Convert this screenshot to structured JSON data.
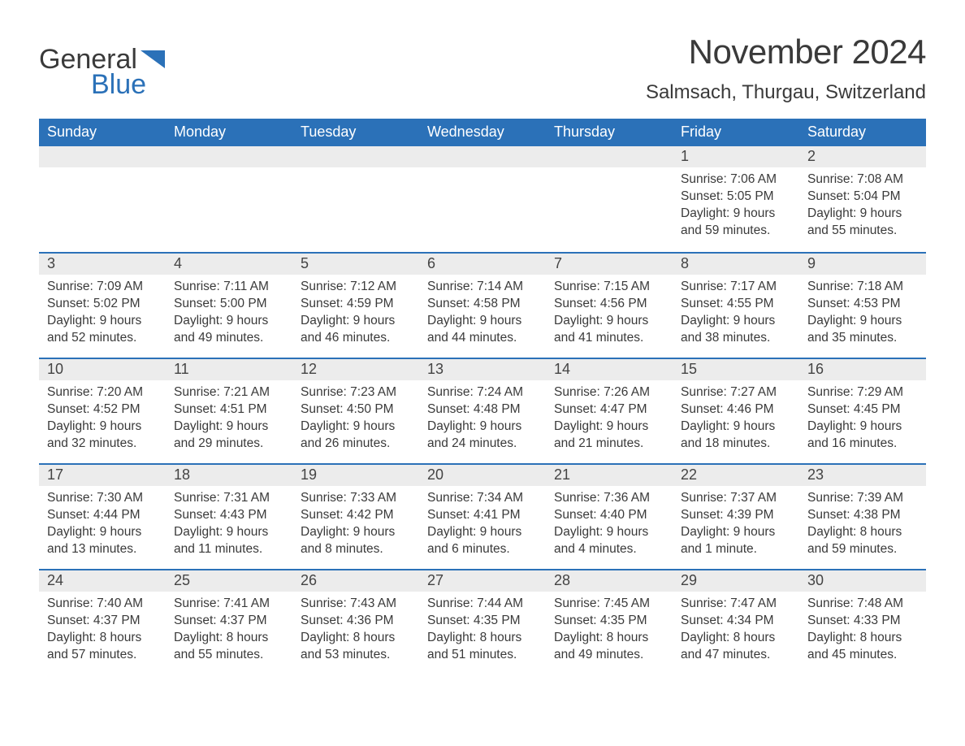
{
  "brand": {
    "text_general": "General",
    "text_blue": "Blue",
    "flag_color": "#2b71b8",
    "text_color_dark": "#3a3a3a"
  },
  "title": "November 2024",
  "subtitle": "Salmsach, Thurgau, Switzerland",
  "colors": {
    "header_bg": "#2b71b8",
    "header_text": "#ffffff",
    "daynum_bg": "#ececec",
    "week_divider": "#2b71b8",
    "body_text": "#3a3a3a",
    "page_bg": "#ffffff"
  },
  "typography": {
    "title_fontsize": 42,
    "subtitle_fontsize": 24,
    "weekday_fontsize": 18,
    "daynum_fontsize": 18,
    "body_fontsize": 15.5,
    "font_family": "Arial"
  },
  "weekdays": [
    "Sunday",
    "Monday",
    "Tuesday",
    "Wednesday",
    "Thursday",
    "Friday",
    "Saturday"
  ],
  "weeks": [
    [
      {
        "blank": true
      },
      {
        "blank": true
      },
      {
        "blank": true
      },
      {
        "blank": true
      },
      {
        "blank": true
      },
      {
        "day": "1",
        "sunrise": "Sunrise: 7:06 AM",
        "sunset": "Sunset: 5:05 PM",
        "dl1": "Daylight: 9 hours",
        "dl2": "and 59 minutes."
      },
      {
        "day": "2",
        "sunrise": "Sunrise: 7:08 AM",
        "sunset": "Sunset: 5:04 PM",
        "dl1": "Daylight: 9 hours",
        "dl2": "and 55 minutes."
      }
    ],
    [
      {
        "day": "3",
        "sunrise": "Sunrise: 7:09 AM",
        "sunset": "Sunset: 5:02 PM",
        "dl1": "Daylight: 9 hours",
        "dl2": "and 52 minutes."
      },
      {
        "day": "4",
        "sunrise": "Sunrise: 7:11 AM",
        "sunset": "Sunset: 5:00 PM",
        "dl1": "Daylight: 9 hours",
        "dl2": "and 49 minutes."
      },
      {
        "day": "5",
        "sunrise": "Sunrise: 7:12 AM",
        "sunset": "Sunset: 4:59 PM",
        "dl1": "Daylight: 9 hours",
        "dl2": "and 46 minutes."
      },
      {
        "day": "6",
        "sunrise": "Sunrise: 7:14 AM",
        "sunset": "Sunset: 4:58 PM",
        "dl1": "Daylight: 9 hours",
        "dl2": "and 44 minutes."
      },
      {
        "day": "7",
        "sunrise": "Sunrise: 7:15 AM",
        "sunset": "Sunset: 4:56 PM",
        "dl1": "Daylight: 9 hours",
        "dl2": "and 41 minutes."
      },
      {
        "day": "8",
        "sunrise": "Sunrise: 7:17 AM",
        "sunset": "Sunset: 4:55 PM",
        "dl1": "Daylight: 9 hours",
        "dl2": "and 38 minutes."
      },
      {
        "day": "9",
        "sunrise": "Sunrise: 7:18 AM",
        "sunset": "Sunset: 4:53 PM",
        "dl1": "Daylight: 9 hours",
        "dl2": "and 35 minutes."
      }
    ],
    [
      {
        "day": "10",
        "sunrise": "Sunrise: 7:20 AM",
        "sunset": "Sunset: 4:52 PM",
        "dl1": "Daylight: 9 hours",
        "dl2": "and 32 minutes."
      },
      {
        "day": "11",
        "sunrise": "Sunrise: 7:21 AM",
        "sunset": "Sunset: 4:51 PM",
        "dl1": "Daylight: 9 hours",
        "dl2": "and 29 minutes."
      },
      {
        "day": "12",
        "sunrise": "Sunrise: 7:23 AM",
        "sunset": "Sunset: 4:50 PM",
        "dl1": "Daylight: 9 hours",
        "dl2": "and 26 minutes."
      },
      {
        "day": "13",
        "sunrise": "Sunrise: 7:24 AM",
        "sunset": "Sunset: 4:48 PM",
        "dl1": "Daylight: 9 hours",
        "dl2": "and 24 minutes."
      },
      {
        "day": "14",
        "sunrise": "Sunrise: 7:26 AM",
        "sunset": "Sunset: 4:47 PM",
        "dl1": "Daylight: 9 hours",
        "dl2": "and 21 minutes."
      },
      {
        "day": "15",
        "sunrise": "Sunrise: 7:27 AM",
        "sunset": "Sunset: 4:46 PM",
        "dl1": "Daylight: 9 hours",
        "dl2": "and 18 minutes."
      },
      {
        "day": "16",
        "sunrise": "Sunrise: 7:29 AM",
        "sunset": "Sunset: 4:45 PM",
        "dl1": "Daylight: 9 hours",
        "dl2": "and 16 minutes."
      }
    ],
    [
      {
        "day": "17",
        "sunrise": "Sunrise: 7:30 AM",
        "sunset": "Sunset: 4:44 PM",
        "dl1": "Daylight: 9 hours",
        "dl2": "and 13 minutes."
      },
      {
        "day": "18",
        "sunrise": "Sunrise: 7:31 AM",
        "sunset": "Sunset: 4:43 PM",
        "dl1": "Daylight: 9 hours",
        "dl2": "and 11 minutes."
      },
      {
        "day": "19",
        "sunrise": "Sunrise: 7:33 AM",
        "sunset": "Sunset: 4:42 PM",
        "dl1": "Daylight: 9 hours",
        "dl2": "and 8 minutes."
      },
      {
        "day": "20",
        "sunrise": "Sunrise: 7:34 AM",
        "sunset": "Sunset: 4:41 PM",
        "dl1": "Daylight: 9 hours",
        "dl2": "and 6 minutes."
      },
      {
        "day": "21",
        "sunrise": "Sunrise: 7:36 AM",
        "sunset": "Sunset: 4:40 PM",
        "dl1": "Daylight: 9 hours",
        "dl2": "and 4 minutes."
      },
      {
        "day": "22",
        "sunrise": "Sunrise: 7:37 AM",
        "sunset": "Sunset: 4:39 PM",
        "dl1": "Daylight: 9 hours",
        "dl2": "and 1 minute."
      },
      {
        "day": "23",
        "sunrise": "Sunrise: 7:39 AM",
        "sunset": "Sunset: 4:38 PM",
        "dl1": "Daylight: 8 hours",
        "dl2": "and 59 minutes."
      }
    ],
    [
      {
        "day": "24",
        "sunrise": "Sunrise: 7:40 AM",
        "sunset": "Sunset: 4:37 PM",
        "dl1": "Daylight: 8 hours",
        "dl2": "and 57 minutes."
      },
      {
        "day": "25",
        "sunrise": "Sunrise: 7:41 AM",
        "sunset": "Sunset: 4:37 PM",
        "dl1": "Daylight: 8 hours",
        "dl2": "and 55 minutes."
      },
      {
        "day": "26",
        "sunrise": "Sunrise: 7:43 AM",
        "sunset": "Sunset: 4:36 PM",
        "dl1": "Daylight: 8 hours",
        "dl2": "and 53 minutes."
      },
      {
        "day": "27",
        "sunrise": "Sunrise: 7:44 AM",
        "sunset": "Sunset: 4:35 PM",
        "dl1": "Daylight: 8 hours",
        "dl2": "and 51 minutes."
      },
      {
        "day": "28",
        "sunrise": "Sunrise: 7:45 AM",
        "sunset": "Sunset: 4:35 PM",
        "dl1": "Daylight: 8 hours",
        "dl2": "and 49 minutes."
      },
      {
        "day": "29",
        "sunrise": "Sunrise: 7:47 AM",
        "sunset": "Sunset: 4:34 PM",
        "dl1": "Daylight: 8 hours",
        "dl2": "and 47 minutes."
      },
      {
        "day": "30",
        "sunrise": "Sunrise: 7:48 AM",
        "sunset": "Sunset: 4:33 PM",
        "dl1": "Daylight: 8 hours",
        "dl2": "and 45 minutes."
      }
    ]
  ]
}
